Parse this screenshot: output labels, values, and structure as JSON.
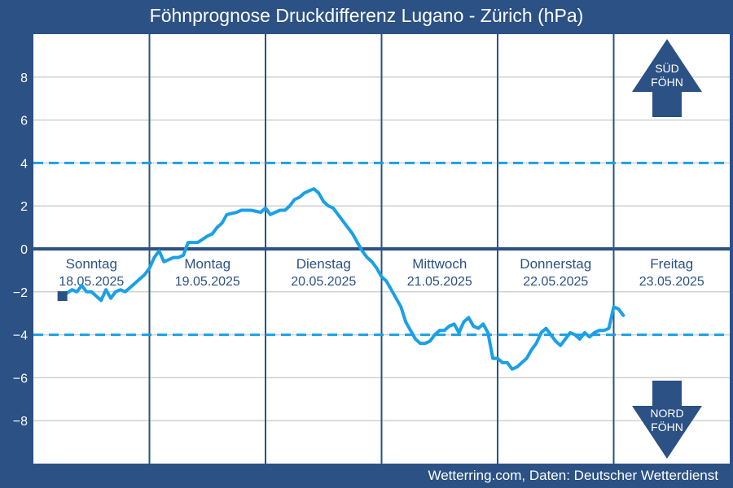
{
  "title": "Föhnprognose Druckdifferenz Lugano - Zürich (hPa)",
  "footer": "Wetterring.com, Daten: Deutscher Wetterdienst",
  "colors": {
    "frame": "#2b5185",
    "plot_background": "#ffffff",
    "gridline": "#d0d0d0",
    "zero_line": "#2b5185",
    "threshold": "#1aa0e6",
    "series": "#1aa0e6",
    "arrow": "#2b5185",
    "day_text": "#2b5185"
  },
  "arrows": {
    "south": {
      "line1": "SÜD",
      "line2": "FÖHN"
    },
    "north": {
      "line1": "NORD",
      "line2": "FÖHN"
    }
  },
  "chart_data": {
    "type": "line",
    "title": "Föhnprognose Druckdifferenz Lugano - Zürich (hPa)",
    "xlabel": "",
    "ylabel": "",
    "ylim": [
      -10,
      10
    ],
    "yticks": [
      8,
      6,
      4,
      2,
      0,
      -2,
      -4,
      -6,
      -8
    ],
    "ytick_labels": [
      "8",
      "6",
      "4",
      "2",
      "0",
      "−2",
      "−4",
      "−6",
      "−8"
    ],
    "thresholds": [
      4,
      -4
    ],
    "zero_line": 0,
    "grid": true,
    "x_unit": "hours since Sonntag 18.05.2025 00:00",
    "xlim": [
      0,
      144
    ],
    "days": [
      {
        "name": "Sonntag",
        "date": "18.05.2025"
      },
      {
        "name": "Montag",
        "date": "19.05.2025"
      },
      {
        "name": "Dienstag",
        "date": "20.05.2025"
      },
      {
        "name": "Mittwoch",
        "date": "21.05.2025"
      },
      {
        "name": "Donnerstag",
        "date": "22.05.2025"
      },
      {
        "name": "Freitag",
        "date": "23.05.2025"
      }
    ],
    "series": [
      {
        "values": [
          [
            6.0,
            -2.2
          ],
          [
            8.0,
            -1.9
          ],
          [
            9.0,
            -2.0
          ],
          [
            10.0,
            -1.7
          ],
          [
            11.0,
            -2.0
          ],
          [
            12.0,
            -2.0
          ],
          [
            14.0,
            -2.4
          ],
          [
            15.0,
            -1.9
          ],
          [
            16.0,
            -2.3
          ],
          [
            17.0,
            -2.0
          ],
          [
            18.0,
            -1.9
          ],
          [
            19.0,
            -2.0
          ],
          [
            21.0,
            -1.6
          ],
          [
            22.0,
            -1.4
          ],
          [
            23.0,
            -1.2
          ],
          [
            24.0,
            -0.9
          ],
          [
            25.0,
            -0.4
          ],
          [
            26.0,
            -0.1
          ],
          [
            27.0,
            -0.6
          ],
          [
            28.0,
            -0.5
          ],
          [
            29.0,
            -0.4
          ],
          [
            30.0,
            -0.4
          ],
          [
            31.0,
            -0.3
          ],
          [
            32.0,
            0.3
          ],
          [
            34.0,
            0.3
          ],
          [
            36.0,
            0.6
          ],
          [
            37.0,
            0.7
          ],
          [
            38.0,
            1.0
          ],
          [
            39.0,
            1.2
          ],
          [
            40.0,
            1.6
          ],
          [
            42.0,
            1.7
          ],
          [
            43.0,
            1.8
          ],
          [
            45.0,
            1.8
          ],
          [
            47.0,
            1.7
          ],
          [
            48.0,
            1.9
          ],
          [
            49.0,
            1.6
          ],
          [
            50.0,
            1.7
          ],
          [
            51.0,
            1.8
          ],
          [
            52.0,
            1.8
          ],
          [
            53.0,
            2.0
          ],
          [
            54.0,
            2.3
          ],
          [
            55.0,
            2.4
          ],
          [
            56.0,
            2.6
          ],
          [
            57.0,
            2.7
          ],
          [
            58.0,
            2.8
          ],
          [
            59.0,
            2.6
          ],
          [
            60.0,
            2.2
          ],
          [
            61.0,
            2.0
          ],
          [
            62.0,
            1.9
          ],
          [
            63.0,
            1.6
          ],
          [
            64.0,
            1.3
          ],
          [
            65.0,
            1.0
          ],
          [
            66.0,
            0.7
          ],
          [
            67.0,
            0.3
          ],
          [
            68.0,
            -0.1
          ],
          [
            69.0,
            -0.4
          ],
          [
            70.0,
            -0.6
          ],
          [
            71.0,
            -0.9
          ],
          [
            72.0,
            -1.3
          ],
          [
            73.0,
            -1.5
          ],
          [
            74.0,
            -1.9
          ],
          [
            75.0,
            -2.3
          ],
          [
            76.0,
            -2.7
          ],
          [
            77.0,
            -3.4
          ],
          [
            78.0,
            -3.8
          ],
          [
            79.0,
            -4.2
          ],
          [
            80.0,
            -4.4
          ],
          [
            81.0,
            -4.4
          ],
          [
            82.0,
            -4.3
          ],
          [
            83.0,
            -4.0
          ],
          [
            84.0,
            -3.8
          ],
          [
            85.0,
            -3.8
          ],
          [
            86.0,
            -3.6
          ],
          [
            87.0,
            -3.5
          ],
          [
            88.0,
            -3.9
          ],
          [
            89.0,
            -3.4
          ],
          [
            90.0,
            -3.2
          ],
          [
            91.0,
            -3.6
          ],
          [
            92.0,
            -3.7
          ],
          [
            93.0,
            -3.5
          ],
          [
            94.0,
            -3.9
          ],
          [
            95.0,
            -5.1
          ],
          [
            96.0,
            -5.1
          ],
          [
            97.0,
            -5.3
          ],
          [
            98.0,
            -5.3
          ],
          [
            99.0,
            -5.6
          ],
          [
            100.0,
            -5.5
          ],
          [
            101.0,
            -5.3
          ],
          [
            102.0,
            -5.1
          ],
          [
            103.0,
            -4.7
          ],
          [
            104.0,
            -4.4
          ],
          [
            105.0,
            -3.9
          ],
          [
            106.0,
            -3.7
          ],
          [
            107.0,
            -4.0
          ],
          [
            108.0,
            -4.3
          ],
          [
            109.0,
            -4.5
          ],
          [
            110.0,
            -4.2
          ],
          [
            111.0,
            -3.9
          ],
          [
            112.0,
            -4.0
          ],
          [
            113.0,
            -4.2
          ],
          [
            114.0,
            -3.9
          ],
          [
            115.0,
            -4.1
          ],
          [
            116.0,
            -3.9
          ],
          [
            117.0,
            -3.8
          ],
          [
            118.0,
            -3.8
          ],
          [
            119.0,
            -3.7
          ],
          [
            120.0,
            -2.7
          ],
          [
            121.0,
            -2.8
          ],
          [
            122.0,
            -3.1
          ]
        ]
      }
    ]
  }
}
